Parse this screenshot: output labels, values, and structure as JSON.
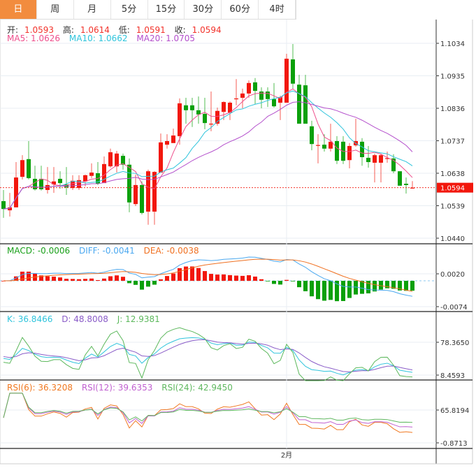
{
  "tabs": [
    {
      "label": "日",
      "active": true
    },
    {
      "label": "周",
      "active": false
    },
    {
      "label": "月",
      "active": false
    },
    {
      "label": "5分",
      "active": false
    },
    {
      "label": "15分",
      "active": false
    },
    {
      "label": "30分",
      "active": false
    },
    {
      "label": "60分",
      "active": false
    },
    {
      "label": "4时",
      "active": false
    }
  ],
  "ohlc_legend": {
    "open_label": "开:",
    "open": "1.0593",
    "high_label": "高:",
    "high": "1.0614",
    "low_label": "低:",
    "low": "1.0591",
    "close_label": "收:",
    "close": "1.0594"
  },
  "ma_legend": {
    "ma5": "MA5: 1.0626",
    "ma10": "MA10: 1.0662",
    "ma20": "MA20: 1.0705"
  },
  "macd_legend": {
    "macd": "MACD: -0.0006",
    "diff": "DIFF: -0.0041",
    "dea": "DEA: -0.0038"
  },
  "kdj_legend": {
    "k": "K: 36.8466",
    "d": "D: 48.8008",
    "j": "J: 12.9381"
  },
  "rsi_legend": {
    "rsi6": "RSI(6): 36.3208",
    "rsi12": "RSI(12): 39.6353",
    "rsi24": "RSI(24): 42.9450"
  },
  "colors": {
    "up": "#f2170c",
    "down": "#0aa00a",
    "active_tab": "#f28c3e",
    "ma5": "#ee4f8c",
    "ma10": "#2fc4dc",
    "ma20": "#b450cc",
    "diff": "#4aa8f0",
    "dea": "#f07020",
    "k": "#2fc4dc",
    "d": "#8a5cc8",
    "j": "#5cb85c",
    "rsi6": "#f07820",
    "rsi12": "#c060d0",
    "rsi24": "#60b860"
  },
  "chart_data": {
    "type": "candlestick",
    "up_color_meaning": "red = rising, green = falling",
    "x_tick_labels": [
      {
        "index": 45,
        "label": "2月"
      }
    ],
    "price_axis": {
      "ticks": [
        "1.1034",
        "1.0935",
        "1.0836",
        "1.0737",
        "1.0638",
        "1.0539",
        "1.0440"
      ],
      "ylim": [
        1.044,
        1.1034
      ]
    },
    "last_price": "1.0594",
    "macd_axis": {
      "ticks": [
        "0.0020",
        "-0.0074"
      ],
      "ylim": [
        -0.0074,
        0.002
      ]
    },
    "kdj_axis": {
      "ticks": [
        "78.3650",
        "8.4593"
      ],
      "ylim": [
        8.4593,
        78.365
      ]
    },
    "rsi_axis": {
      "ticks": [
        "65.8194",
        "-0.8713"
      ],
      "ylim": [
        -0.8713,
        65.8194
      ]
    },
    "candles_ohlc": [
      [
        1.0553,
        1.0587,
        1.0502,
        1.0529
      ],
      [
        1.0525,
        1.0578,
        1.0506,
        1.0534
      ],
      [
        1.0534,
        1.0672,
        1.0534,
        1.0625
      ],
      [
        1.0627,
        1.0693,
        1.0619,
        1.0678
      ],
      [
        1.0681,
        1.0736,
        1.0619,
        1.0623
      ],
      [
        1.0621,
        1.0661,
        1.0585,
        1.0589
      ],
      [
        1.0621,
        1.0661,
        1.0585,
        1.0589
      ],
      [
        1.0587,
        1.0657,
        1.0576,
        1.0602
      ],
      [
        1.0604,
        1.0657,
        1.0578,
        1.0613
      ],
      [
        1.0621,
        1.0644,
        1.0591,
        1.0608
      ],
      [
        1.0604,
        1.0657,
        1.0572,
        1.0595
      ],
      [
        1.0593,
        1.0632,
        1.0587,
        1.0615
      ],
      [
        1.0593,
        1.0632,
        1.0587,
        1.0617
      ],
      [
        1.0613,
        1.0634,
        1.0598,
        1.0632
      ],
      [
        1.063,
        1.0668,
        1.0623,
        1.064
      ],
      [
        1.0638,
        1.0672,
        1.0602,
        1.0606
      ],
      [
        1.0608,
        1.0689,
        1.0608,
        1.0666
      ],
      [
        1.0659,
        1.0713,
        1.0655,
        1.0702
      ],
      [
        1.0659,
        1.0706,
        1.064,
        1.0698
      ],
      [
        1.0691,
        1.0698,
        1.0649,
        1.0664
      ],
      [
        1.0664,
        1.0683,
        1.0519,
        1.0549
      ],
      [
        1.0544,
        1.0634,
        1.0538,
        1.0602
      ],
      [
        1.0602,
        1.0613,
        1.0512,
        1.0517
      ],
      [
        1.0521,
        1.0649,
        1.0481,
        1.0644
      ],
      [
        1.0521,
        1.0644,
        1.0481,
        1.0642
      ],
      [
        1.064,
        1.0759,
        1.064,
        1.0732
      ],
      [
        1.0725,
        1.0757,
        1.0713,
        1.0736
      ],
      [
        1.073,
        1.0774,
        1.073,
        1.0753
      ],
      [
        1.0751,
        1.0866,
        1.0725,
        1.0851
      ],
      [
        1.0845,
        1.0868,
        1.0789,
        1.083
      ],
      [
        1.0845,
        1.0868,
        1.0779,
        1.083
      ],
      [
        1.083,
        1.0872,
        1.0789,
        1.0817
      ],
      [
        1.0819,
        1.0868,
        1.0772,
        1.0791
      ],
      [
        1.0787,
        1.0887,
        1.0766,
        1.0789
      ],
      [
        1.0789,
        1.0838,
        1.0783,
        1.0828
      ],
      [
        1.0825,
        1.0857,
        1.08,
        1.0855
      ],
      [
        1.0823,
        1.0857,
        1.08,
        1.0853
      ],
      [
        1.0864,
        1.0925,
        1.0845,
        1.0866
      ],
      [
        1.0868,
        1.0896,
        1.0836,
        1.0881
      ],
      [
        1.0881,
        1.0921,
        1.0868,
        1.0913
      ],
      [
        1.0915,
        1.0928,
        1.0849,
        1.0889
      ],
      [
        1.0887,
        1.09,
        1.0836,
        1.0862
      ],
      [
        1.0887,
        1.09,
        1.084,
        1.0864
      ],
      [
        1.0864,
        1.0913,
        1.0838,
        1.0842
      ],
      [
        1.0853,
        1.0874,
        1.08,
        1.087
      ],
      [
        1.0853,
        1.1002,
        1.0853,
        1.0987
      ],
      [
        1.0985,
        1.1032,
        1.0896,
        1.0911
      ],
      [
        1.0908,
        1.0938,
        1.0789,
        1.0789
      ],
      [
        1.0906,
        1.0938,
        1.0789,
        1.0789
      ],
      [
        1.0781,
        1.0798,
        1.0708,
        1.0727
      ],
      [
        1.0723,
        1.0757,
        1.0668,
        1.0724
      ],
      [
        1.0725,
        1.0757,
        1.0704,
        1.0713
      ],
      [
        1.0713,
        1.0789,
        1.0704,
        1.0734
      ],
      [
        1.0736,
        1.0751,
        1.0666,
        1.0676
      ],
      [
        1.0734,
        1.0751,
        1.0666,
        1.0676
      ],
      [
        1.0678,
        1.073,
        1.0653,
        1.0721
      ],
      [
        1.0723,
        1.0804,
        1.0719,
        1.0736
      ],
      [
        1.0734,
        1.0745,
        1.0661,
        1.0687
      ],
      [
        1.0685,
        1.0721,
        1.0655,
        1.0672
      ],
      [
        1.067,
        1.0698,
        1.061,
        1.0693
      ],
      [
        1.067,
        1.0698,
        1.061,
        1.0693
      ],
      [
        1.0683,
        1.0704,
        1.067,
        1.0684
      ],
      [
        1.0683,
        1.0696,
        1.0638,
        1.0644
      ],
      [
        1.0644,
        1.0644,
        1.06,
        1.06
      ],
      [
        1.0606,
        1.0625,
        1.0576,
        1.0602
      ],
      [
        1.0593,
        1.0614,
        1.0591,
        1.0594
      ]
    ]
  }
}
